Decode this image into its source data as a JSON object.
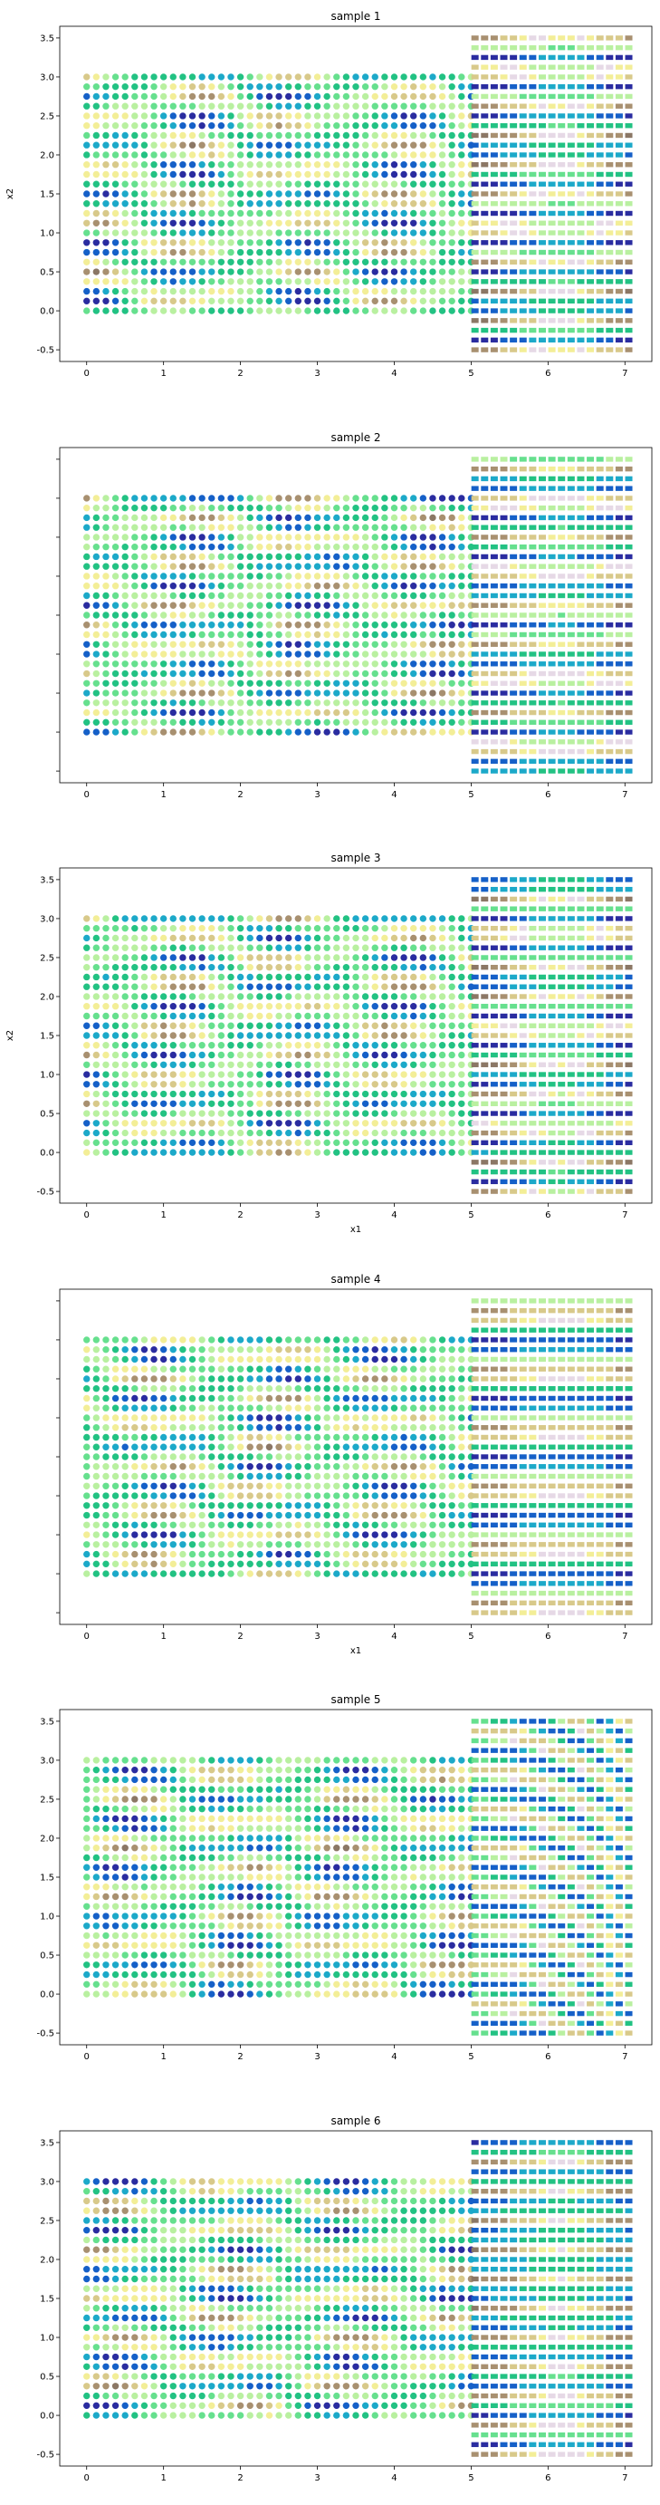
{
  "chart_data": [
    {
      "type": "scatter",
      "title": "sample 1",
      "xlabel": "",
      "ylabel": "x2",
      "xlim": [
        -0.35,
        7.35
      ],
      "ylim": [
        -0.65,
        3.65
      ],
      "xticks": [
        0,
        1,
        2,
        3,
        4,
        5,
        6,
        7
      ],
      "yticks": [
        -0.5,
        0.0,
        0.5,
        1.0,
        1.5,
        2.0,
        2.5,
        3.0,
        3.5
      ],
      "show_xticklabels": true,
      "show_yticklabels": true,
      "grid": false,
      "regions": [
        {
          "marker": "circle",
          "x_range": [
            0,
            5
          ],
          "y_range": [
            0,
            3
          ],
          "nx": 41,
          "ny": 25
        },
        {
          "marker": "square",
          "x_range": [
            5.05,
            7.05
          ],
          "y_range": [
            -0.5,
            3.5
          ],
          "nx": 17,
          "ny": 33
        }
      ],
      "x_period": 2.7,
      "x_phase": 0.0,
      "y_period": 0.65,
      "y_phase": 0.0,
      "right_y_period": 0.4,
      "right_y_phase": 0.1,
      "right_curve": 0.0,
      "right_x_mod": 0.3
    },
    {
      "type": "scatter",
      "title": "sample 2",
      "xlabel": "",
      "ylabel": "",
      "xlim": [
        -0.35,
        7.35
      ],
      "ylim": [
        -0.65,
        3.65
      ],
      "xticks": [
        0,
        1,
        2,
        3,
        4,
        5,
        6,
        7
      ],
      "yticks": [
        -0.5,
        0.0,
        0.5,
        1.0,
        1.5,
        2.0,
        2.5,
        3.0,
        3.5
      ],
      "show_xticklabels": true,
      "show_yticklabels": false,
      "grid": false,
      "regions": [
        {
          "marker": "circle",
          "x_range": [
            0,
            5
          ],
          "y_range": [
            0,
            3
          ],
          "nx": 41,
          "ny": 25
        },
        {
          "marker": "square",
          "x_range": [
            5.05,
            7.05
          ],
          "y_range": [
            -0.5,
            3.5
          ],
          "nx": 17,
          "ny": 33
        }
      ],
      "x_period": 3.2,
      "x_phase": 1.1,
      "y_period": 0.55,
      "y_phase": 0.3,
      "right_y_period": 0.45,
      "right_y_phase": 0.2,
      "right_curve": 0.0,
      "right_x_mod": 0.2
    },
    {
      "type": "scatter",
      "title": "sample 3",
      "xlabel": "x1",
      "ylabel": "x2",
      "xlim": [
        -0.35,
        7.35
      ],
      "ylim": [
        -0.65,
        3.65
      ],
      "xticks": [
        0,
        1,
        2,
        3,
        4,
        5,
        6,
        7
      ],
      "yticks": [
        -0.5,
        0.0,
        0.5,
        1.0,
        1.5,
        2.0,
        2.5,
        3.0,
        3.5
      ],
      "show_xticklabels": true,
      "show_yticklabels": true,
      "grid": false,
      "regions": [
        {
          "marker": "circle",
          "x_range": [
            0,
            5
          ],
          "y_range": [
            0,
            3
          ],
          "nx": 41,
          "ny": 25
        },
        {
          "marker": "square",
          "x_range": [
            5.05,
            7.05
          ],
          "y_range": [
            -0.5,
            3.5
          ],
          "nx": 17,
          "ny": 33
        }
      ],
      "x_period": 2.9,
      "x_phase": 0.6,
      "y_period": 0.6,
      "y_phase": 0.15,
      "right_y_period": 0.42,
      "right_y_phase": 0.05,
      "right_curve": 0.0,
      "right_x_mod": 0.35
    },
    {
      "type": "scatter",
      "title": "sample 4",
      "xlabel": "x1",
      "ylabel": "",
      "xlim": [
        -0.35,
        7.35
      ],
      "ylim": [
        -0.65,
        3.65
      ],
      "xticks": [
        0,
        1,
        2,
        3,
        4,
        5,
        6,
        7
      ],
      "yticks": [
        -0.5,
        0.0,
        0.5,
        1.0,
        1.5,
        2.0,
        2.5,
        3.0,
        3.5
      ],
      "show_xticklabels": true,
      "show_yticklabels": false,
      "grid": false,
      "regions": [
        {
          "marker": "circle",
          "x_range": [
            0,
            5
          ],
          "y_range": [
            0,
            3
          ],
          "nx": 41,
          "ny": 25
        },
        {
          "marker": "square",
          "x_range": [
            5.05,
            7.05
          ],
          "y_range": [
            -0.5,
            3.5
          ],
          "nx": 17,
          "ny": 33
        }
      ],
      "x_period": 3.0,
      "x_phase": 1.7,
      "y_period": 0.58,
      "y_phase": 0.4,
      "right_y_period": 0.75,
      "right_y_phase": 0.3,
      "right_curve": 0.0,
      "right_x_mod": 0.15
    },
    {
      "type": "scatter",
      "title": "sample 5",
      "xlabel": "",
      "ylabel": "",
      "xlim": [
        -0.35,
        7.35
      ],
      "ylim": [
        -0.65,
        3.65
      ],
      "xticks": [
        0,
        1,
        2,
        3,
        4,
        5,
        6,
        7
      ],
      "yticks": [
        -0.5,
        0.0,
        0.5,
        1.0,
        1.5,
        2.0,
        2.5,
        3.0,
        3.5
      ],
      "show_xticklabels": true,
      "show_yticklabels": true,
      "grid": false,
      "regions": [
        {
          "marker": "circle",
          "x_range": [
            0,
            5
          ],
          "y_range": [
            0,
            3
          ],
          "nx": 41,
          "ny": 25
        },
        {
          "marker": "square",
          "x_range": [
            5.05,
            7.05
          ],
          "y_range": [
            -0.5,
            3.5
          ],
          "nx": 17,
          "ny": 33
        }
      ],
      "x_period": 2.8,
      "x_phase": 0.3,
      "y_period": 0.62,
      "y_phase": 0.2,
      "right_y_period": 0.5,
      "right_y_phase": 0.0,
      "right_curve": 0.9,
      "right_x_mod": 0.0
    },
    {
      "type": "scatter",
      "title": "sample 6",
      "xlabel": "",
      "ylabel": "",
      "xlim": [
        -0.35,
        7.35
      ],
      "ylim": [
        -0.65,
        3.65
      ],
      "xticks": [
        0,
        1,
        2,
        3,
        4,
        5,
        6,
        7
      ],
      "yticks": [
        -0.5,
        0.0,
        0.5,
        1.0,
        1.5,
        2.0,
        2.5,
        3.0,
        3.5
      ],
      "show_xticklabels": true,
      "show_yticklabels": true,
      "grid": false,
      "regions": [
        {
          "marker": "circle",
          "x_range": [
            0,
            5
          ],
          "y_range": [
            0,
            3
          ],
          "nx": 41,
          "ny": 25
        },
        {
          "marker": "square",
          "x_range": [
            5.05,
            7.05
          ],
          "y_range": [
            -0.5,
            3.5
          ],
          "nx": 17,
          "ny": 33
        }
      ],
      "x_period": 3.1,
      "x_phase": 0.9,
      "y_period": 0.57,
      "y_phase": 0.05,
      "right_y_period": 0.38,
      "right_y_phase": 0.15,
      "right_curve": 0.0,
      "right_x_mod": 0.25
    }
  ],
  "colormap": [
    "#8B7765",
    "#A89070",
    "#D8C98A",
    "#F3EE97",
    "#B9F0A0",
    "#66E08E",
    "#22C283",
    "#1CA9C9",
    "#1560C8",
    "#2A2CA0",
    "#E6D9E6"
  ]
}
